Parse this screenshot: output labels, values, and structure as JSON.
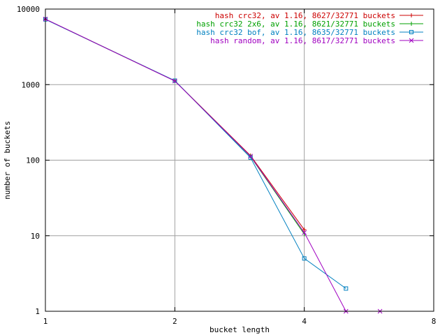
{
  "chart_data": {
    "type": "line",
    "xlabel": "bucket length",
    "ylabel": "number of buckets",
    "x_scale": "log2",
    "y_scale": "log10",
    "xlim": [
      1,
      8
    ],
    "ylim": [
      1,
      10000
    ],
    "x_ticks": [
      1,
      2,
      4,
      8
    ],
    "x_tick_labels": [
      "1",
      "2",
      "4",
      "8"
    ],
    "y_ticks": [
      1,
      10,
      100,
      1000,
      10000
    ],
    "y_tick_labels": [
      "1",
      "10",
      "100",
      "1000",
      "10000"
    ],
    "grid": true,
    "legend_position": "top-right",
    "series": [
      {
        "name": "hash crc32, av 1.16, 8627/32771 buckets",
        "color": "#cc0000",
        "marker": "plus",
        "points": [
          [
            1,
            7350
          ],
          [
            2,
            1120
          ],
          [
            3,
            115
          ],
          [
            4,
            12
          ]
        ]
      },
      {
        "name": "hash crc32 2x6, av 1.16, 8621/32771 buckets",
        "color": "#00a000",
        "marker": "vbar",
        "points": [
          [
            1,
            7330
          ],
          [
            2,
            1125
          ],
          [
            3,
            112
          ],
          [
            4,
            10.5
          ]
        ]
      },
      {
        "name": "hash crc32 bof, av 1.16, 8635/32771 buckets",
        "color": "#0080c0",
        "marker": "square",
        "points": [
          [
            1,
            7300
          ],
          [
            2,
            1130
          ],
          [
            3,
            108
          ],
          [
            4,
            5
          ],
          [
            5,
            2
          ]
        ]
      },
      {
        "name": "hash random, av 1.16, 8617/32771 buckets",
        "color": "#a000c0",
        "marker": "x",
        "points": [
          [
            1,
            7380
          ],
          [
            2,
            1115
          ],
          [
            3,
            113
          ],
          [
            4,
            11
          ],
          [
            5,
            1
          ],
          [
            6,
            1
          ]
        ]
      }
    ]
  }
}
